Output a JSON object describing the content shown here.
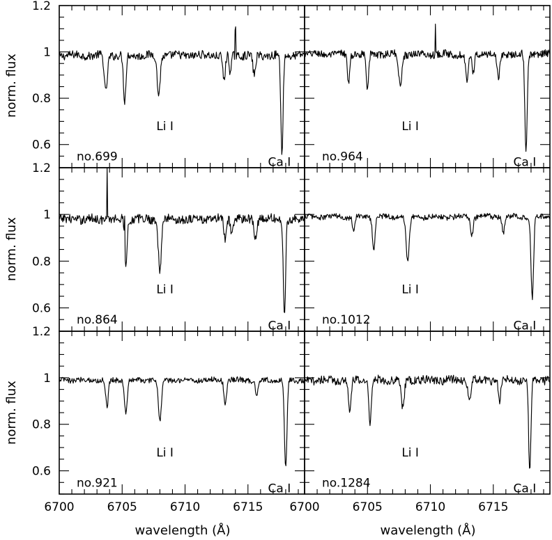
{
  "chart_data": {
    "type": "line",
    "xlabel": "wavelength (Å)",
    "ylabel": "norm. flux",
    "xlim": [
      6700,
      6719.5
    ],
    "ylim": [
      0.5,
      1.2
    ],
    "x_ticks": [
      "6700",
      "6705",
      "6710",
      "6715"
    ],
    "y_ticks": [
      "1.2",
      "1",
      "0.8",
      "0.6"
    ],
    "line_labels": {
      "li": "Li  I",
      "ca": "Ca  I"
    },
    "panels": [
      {
        "name": "no.699",
        "continuum": 0.985,
        "noise": 0.018,
        "lines": [
          {
            "x": 6703.7,
            "depth": 0.16,
            "width": 0.12
          },
          {
            "x": 6705.2,
            "depth": 0.2,
            "width": 0.1
          },
          {
            "x": 6707.9,
            "depth": 0.17,
            "width": 0.12
          },
          {
            "x": 6713.1,
            "depth": 0.11,
            "width": 0.1
          },
          {
            "x": 6713.6,
            "depth": 0.08,
            "width": 0.08
          },
          {
            "x": 6715.5,
            "depth": 0.09,
            "width": 0.1
          },
          {
            "x": 6717.7,
            "depth": 0.42,
            "width": 0.09
          }
        ],
        "spikes": [
          {
            "x": 6714.0,
            "height": 0.12
          }
        ],
        "li_label_pos": [
          6708.4,
          0.68
        ],
        "ca_label_pos": [
          6717.5,
          0.525
        ]
      },
      {
        "name": "no.964",
        "continuum": 0.99,
        "noise": 0.016,
        "lines": [
          {
            "x": 6703.5,
            "depth": 0.13,
            "width": 0.09
          },
          {
            "x": 6705.0,
            "depth": 0.15,
            "width": 0.09
          },
          {
            "x": 6707.6,
            "depth": 0.14,
            "width": 0.12
          },
          {
            "x": 6712.9,
            "depth": 0.12,
            "width": 0.1
          },
          {
            "x": 6713.4,
            "depth": 0.09,
            "width": 0.08
          },
          {
            "x": 6715.4,
            "depth": 0.11,
            "width": 0.1
          },
          {
            "x": 6717.6,
            "depth": 0.42,
            "width": 0.09
          }
        ],
        "spikes": [
          {
            "x": 6710.4,
            "height": 0.12
          }
        ],
        "li_label_pos": [
          6708.4,
          0.68
        ],
        "ca_label_pos": [
          6717.5,
          0.525
        ]
      },
      {
        "name": "no.864",
        "continuum": 0.98,
        "noise": 0.02,
        "lines": [
          {
            "x": 6705.3,
            "depth": 0.2,
            "width": 0.09
          },
          {
            "x": 6708.0,
            "depth": 0.22,
            "width": 0.12
          },
          {
            "x": 6713.2,
            "depth": 0.09,
            "width": 0.1
          },
          {
            "x": 6713.7,
            "depth": 0.07,
            "width": 0.08
          },
          {
            "x": 6715.6,
            "depth": 0.08,
            "width": 0.1
          },
          {
            "x": 6717.9,
            "depth": 0.42,
            "width": 0.09
          }
        ],
        "spikes": [
          {
            "x": 6703.8,
            "height": 0.22
          },
          {
            "x": 6705.2,
            "height": 0.14
          }
        ],
        "li_label_pos": [
          6708.4,
          0.68
        ],
        "ca_label_pos": [
          6717.5,
          0.525
        ]
      },
      {
        "name": "no.1012",
        "continuum": 0.99,
        "noise": 0.012,
        "lines": [
          {
            "x": 6703.9,
            "depth": 0.06,
            "width": 0.09
          },
          {
            "x": 6705.5,
            "depth": 0.14,
            "width": 0.1
          },
          {
            "x": 6708.2,
            "depth": 0.2,
            "width": 0.12
          },
          {
            "x": 6713.3,
            "depth": 0.08,
            "width": 0.1
          },
          {
            "x": 6715.8,
            "depth": 0.07,
            "width": 0.1
          },
          {
            "x": 6718.1,
            "depth": 0.35,
            "width": 0.1
          }
        ],
        "spikes": [],
        "li_label_pos": [
          6708.4,
          0.68
        ],
        "ca_label_pos": [
          6717.5,
          0.525
        ]
      },
      {
        "name": "no.921",
        "continuum": 0.99,
        "noise": 0.012,
        "lines": [
          {
            "x": 6703.8,
            "depth": 0.12,
            "width": 0.1
          },
          {
            "x": 6705.3,
            "depth": 0.15,
            "width": 0.1
          },
          {
            "x": 6708.0,
            "depth": 0.18,
            "width": 0.12
          },
          {
            "x": 6713.2,
            "depth": 0.1,
            "width": 0.1
          },
          {
            "x": 6715.7,
            "depth": 0.07,
            "width": 0.1
          },
          {
            "x": 6718.0,
            "depth": 0.38,
            "width": 0.1
          }
        ],
        "spikes": [],
        "li_label_pos": [
          6708.4,
          0.68
        ],
        "ca_label_pos": [
          6717.5,
          0.525
        ]
      },
      {
        "name": "no.1284",
        "continuum": 0.99,
        "noise": 0.018,
        "lines": [
          {
            "x": 6703.6,
            "depth": 0.15,
            "width": 0.1
          },
          {
            "x": 6705.2,
            "depth": 0.18,
            "width": 0.1
          },
          {
            "x": 6707.8,
            "depth": 0.12,
            "width": 0.12
          },
          {
            "x": 6713.1,
            "depth": 0.1,
            "width": 0.1
          },
          {
            "x": 6715.5,
            "depth": 0.09,
            "width": 0.1
          },
          {
            "x": 6717.9,
            "depth": 0.4,
            "width": 0.09
          }
        ],
        "spikes": [],
        "li_label_pos": [
          6708.4,
          0.68
        ],
        "ca_label_pos": [
          6717.5,
          0.525
        ]
      }
    ]
  }
}
